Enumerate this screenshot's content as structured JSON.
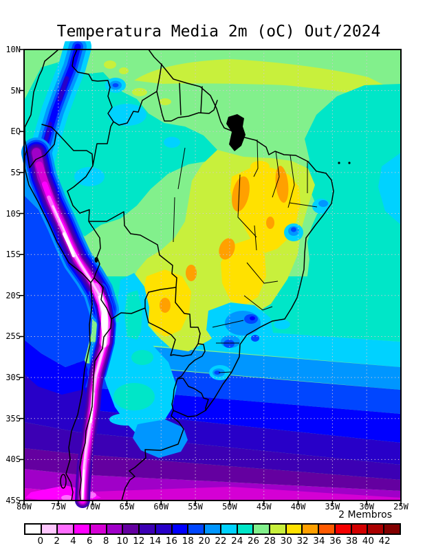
{
  "title": "Temperatura Media 2m (oC) Out/2024",
  "legend_note": "2 Membros",
  "axes": {
    "lat_labels": [
      "10N",
      "5N",
      "EQ",
      "5S",
      "10S",
      "15S",
      "20S",
      "25S",
      "30S",
      "35S",
      "40S",
      "45S"
    ],
    "lon_labels": [
      "80W",
      "75W",
      "70W",
      "65W",
      "60W",
      "55W",
      "50W",
      "45W",
      "40W",
      "35W",
      "30W",
      "25W"
    ]
  },
  "colorbar": {
    "tick_values": [
      "0",
      "2",
      "4",
      "6",
      "8",
      "10",
      "12",
      "14",
      "16",
      "18",
      "20",
      "22",
      "24",
      "26",
      "28",
      "30",
      "32",
      "34",
      "36",
      "38",
      "40",
      "42"
    ],
    "colors": [
      "#FFFFFF",
      "#FFC8FF",
      "#FF6EFF",
      "#FF00FF",
      "#D400D4",
      "#A000C8",
      "#6400A0",
      "#3C00B4",
      "#2800C8",
      "#0000FF",
      "#0046FF",
      "#0096FF",
      "#00D2FF",
      "#00E6C8",
      "#82F08C",
      "#C8F03C",
      "#FFE100",
      "#FFA000",
      "#FF5A00",
      "#F50000",
      "#D20000",
      "#AA0000",
      "#820000"
    ]
  },
  "chart_data": {
    "type": "heatmap",
    "subtype": "filled-contour-geographic-map",
    "title": "Temperatura Media 2m (oC) Out/2024",
    "units": "oC",
    "period": "Out/2024",
    "ensemble": "2 Membros",
    "region": "South America",
    "lon_range": [
      "80W",
      "25W"
    ],
    "lat_range": [
      "10N",
      "45S"
    ],
    "grid": "dotted graticule every 5 degrees",
    "legend_position": "bottom horizontal colorbar",
    "contour_levels": [
      0,
      2,
      4,
      6,
      8,
      10,
      12,
      14,
      16,
      18,
      20,
      22,
      24,
      26,
      28,
      30,
      32,
      34,
      36,
      38,
      40,
      42
    ],
    "features": [
      {
        "area": "Amazon basin and southern Colombia/eastern Peru",
        "value_range_oC": "24-26",
        "color": "#00E6C8"
      },
      {
        "area": "Northern oceans, Venezuela llanos, Guianas",
        "value_range_oC": "26-28",
        "color": "#82F08C"
      },
      {
        "area": "Band near 5N-9N tropical Atlantic",
        "value_range_oC": "28-30",
        "color": "#C8F03C"
      },
      {
        "area": "Interior northeast and central Brazil (Maranhao/Tocantins/Goias)",
        "value_range_oC": "30-32 with 32-34 cores",
        "color": "#FFE100 / #FFA000"
      },
      {
        "area": "Paraguay / Chaco",
        "value_range_oC": "30-34",
        "color": "#FFE100"
      },
      {
        "area": "Colombian Andes band",
        "value_range_oC": "14-20",
        "color": "#0000FF"
      },
      {
        "area": "Peru-Bolivia-Chile Andes ridge",
        "value_range_oC": "below 0 to 8 (white/pink/magenta core)",
        "color": "#FFFFFF to #FF00FF"
      },
      {
        "area": "Humboldt-cooled SE Pacific near Peru/Chile coast",
        "value_range_oC": "10-20",
        "color": "#0046FF to #3C00B4"
      },
      {
        "area": "Central Argentina (Cuyo/Pampas)",
        "value_range_oC": "20-26",
        "color": "#00D2FF core #00E6C8"
      },
      {
        "area": "Serra do Mar / SE Brazil highlands spots",
        "value_range_oC": "16-22",
        "color": "#0046FF"
      },
      {
        "area": "South Atlantic zonal bands 25S-45S",
        "value_range_oC": "22 down to 6",
        "color": "#00D2FF through #D400D4"
      },
      {
        "area": "Far south strip near 45S",
        "value_range_oC": "4-8",
        "color": "#FF00FF / #D400D4"
      }
    ]
  }
}
